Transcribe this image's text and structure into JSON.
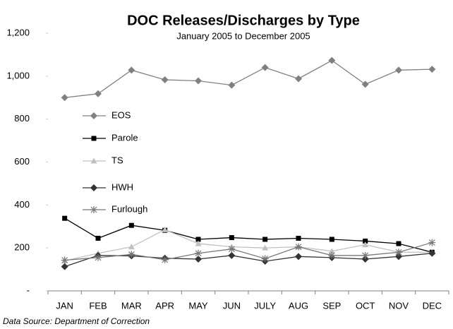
{
  "chart_data": {
    "type": "line",
    "title": "DOC Releases/Discharges by Type",
    "subtitle": "January 2005 to December 2005",
    "source": "Data Source: Department of Correction",
    "categories": [
      "JAN",
      "FEB",
      "MAR",
      "APR",
      "MAY",
      "JUN",
      "JULY",
      "AUG",
      "SEP",
      "OCT",
      "NOV",
      "DEC"
    ],
    "series": [
      {
        "name": "EOS",
        "color": "#808080",
        "marker": "diamond",
        "values": [
          900,
          918,
          1028,
          983,
          978,
          958,
          1040,
          988,
          1073,
          962,
          1028,
          1032
        ]
      },
      {
        "name": "Parole",
        "color": "#000000",
        "marker": "square",
        "values": [
          338,
          245,
          305,
          282,
          240,
          248,
          240,
          245,
          240,
          232,
          220,
          180
        ]
      },
      {
        "name": "TS",
        "color": "#c0c0c0",
        "marker": "triangle",
        "values": [
          140,
          175,
          205,
          285,
          220,
          205,
          200,
          205,
          185,
          215,
          180,
          180
        ]
      },
      {
        "name": "HWH",
        "color": "#333333",
        "marker": "diamond",
        "values": [
          113,
          165,
          163,
          152,
          148,
          165,
          138,
          160,
          155,
          148,
          160,
          175
        ]
      },
      {
        "name": "Furlough",
        "color": "#777777",
        "marker": "asterisk",
        "values": [
          143,
          155,
          170,
          145,
          175,
          195,
          150,
          205,
          165,
          165,
          180,
          225
        ]
      }
    ],
    "ylim": [
      0,
      1200
    ],
    "yticks": [
      {
        "value": 0,
        "label": "-"
      },
      200,
      400,
      600,
      800,
      {
        "value": 1000,
        "label": "1,000"
      },
      {
        "value": 1200,
        "label": "1,200"
      }
    ],
    "grid": false
  }
}
